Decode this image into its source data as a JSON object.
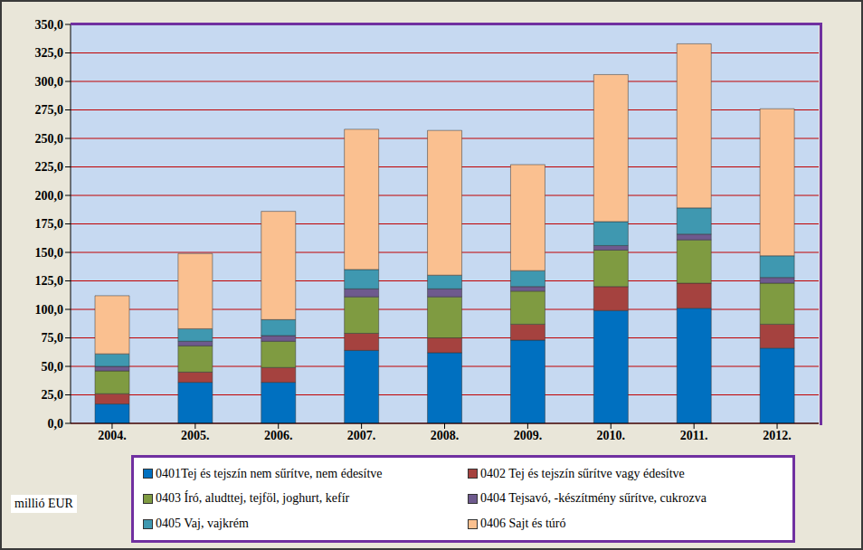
{
  "chart_data": {
    "type": "bar",
    "stacked": true,
    "grid": true,
    "ylabel": "millió EUR",
    "categories": [
      "2004.",
      "2005.",
      "2006.",
      "2007.",
      "2008.",
      "2009.",
      "2010.",
      "2011.",
      "2012."
    ],
    "series": [
      {
        "name": "0401Tej és tejszín nem sűrítve, nem édesítve",
        "color": "#0070C0",
        "values": [
          17,
          36,
          36,
          64,
          62,
          73,
          99,
          101,
          66
        ]
      },
      {
        "name": "0402 Tej és tejszín sűrítve vagy édesítve",
        "color": "#A5423F",
        "values": [
          9,
          9,
          13,
          15,
          13,
          14,
          21,
          22,
          21
        ]
      },
      {
        "name": "0403 Író, aludttej, tejföl, joghurt, kefír",
        "color": "#7F9B41",
        "values": [
          20,
          23,
          23,
          32,
          36,
          29,
          32,
          38,
          36
        ]
      },
      {
        "name": "0404 Tejsavó, -készítmény sűrítve, cukrozva",
        "color": "#6E5A8E",
        "values": [
          4,
          4,
          5,
          7,
          7,
          4,
          4,
          5,
          5
        ]
      },
      {
        "name": "0405 Vaj, vajkrém",
        "color": "#3F98B0",
        "values": [
          11,
          11,
          14,
          17,
          12,
          14,
          21,
          23,
          19
        ]
      },
      {
        "name": "0406 Sajt és túró",
        "color": "#FAC090",
        "values": [
          51,
          66,
          95,
          123,
          127,
          93,
          129,
          144,
          129
        ]
      }
    ],
    "ylim": [
      0,
      350
    ],
    "yticks": [
      {
        "value": 0,
        "label": "0,0"
      },
      {
        "value": 25,
        "label": "25,0"
      },
      {
        "value": 50,
        "label": "50,0"
      },
      {
        "value": 75,
        "label": "75,0"
      },
      {
        "value": 100,
        "label": "100,0"
      },
      {
        "value": 125,
        "label": "125,0"
      },
      {
        "value": 150,
        "label": "150,0"
      },
      {
        "value": 175,
        "label": "175,0"
      },
      {
        "value": 200,
        "label": "200,0"
      },
      {
        "value": 225,
        "label": "225,0"
      },
      {
        "value": 250,
        "label": "250,0"
      },
      {
        "value": 275,
        "label": "275,0"
      },
      {
        "value": 300,
        "label": "300,0"
      },
      {
        "value": 325,
        "label": "325,0"
      },
      {
        "value": 350,
        "label": "350,0"
      }
    ]
  }
}
